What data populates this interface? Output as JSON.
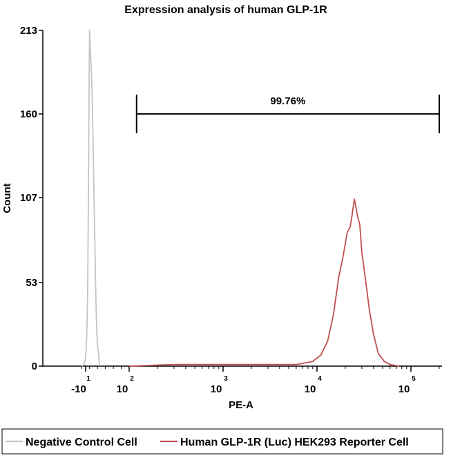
{
  "chart_data": {
    "type": "area",
    "title": "Expression analysis of human GLP-1R",
    "xlabel": "PE-A",
    "ylabel": "Count",
    "x_scale": "biexponential (log)",
    "xlim": [
      -20,
      200000
    ],
    "ylim": [
      0,
      213
    ],
    "y_ticks": [
      "0",
      "53",
      "107",
      "160",
      "213"
    ],
    "x_ticks": [
      {
        "base": "-10",
        "exp": "1",
        "value": -10
      },
      {
        "base": "10",
        "exp": "2",
        "value": 100
      },
      {
        "base": "10",
        "exp": "3",
        "value": 1000
      },
      {
        "base": "10",
        "exp": "4",
        "value": 10000
      },
      {
        "base": "10",
        "exp": "5",
        "value": 100000
      }
    ],
    "gate": {
      "label": "99.76%",
      "x_start": 120,
      "x_end": 200000,
      "y": 160
    },
    "series": [
      {
        "name": "Negative Control Cell",
        "color": "#c4c4c4",
        "points": [
          [
            -20,
            0
          ],
          [
            -14,
            1
          ],
          [
            -11,
            4
          ],
          [
            -9,
            9
          ],
          [
            -7,
            20
          ],
          [
            -5,
            45
          ],
          [
            -3,
            105
          ],
          [
            -1,
            190
          ],
          [
            0,
            213
          ],
          [
            1,
            205
          ],
          [
            2,
            200
          ],
          [
            3,
            196
          ],
          [
            5,
            185
          ],
          [
            7,
            165
          ],
          [
            9,
            140
          ],
          [
            11,
            110
          ],
          [
            13,
            82
          ],
          [
            15,
            55
          ],
          [
            17,
            30
          ],
          [
            19,
            18
          ],
          [
            20,
            13
          ],
          [
            21,
            11
          ],
          [
            22,
            10
          ],
          [
            23,
            6
          ],
          [
            24,
            3
          ],
          [
            25,
            1
          ],
          [
            26,
            0
          ]
        ]
      },
      {
        "name": "Human GLP-1R (Luc) HEK293 Reporter Cell",
        "color": "#c0504d",
        "points": [
          [
            100,
            0
          ],
          [
            300,
            1
          ],
          [
            1000,
            1
          ],
          [
            3000,
            1
          ],
          [
            6000,
            1
          ],
          [
            9000,
            3
          ],
          [
            11000,
            7
          ],
          [
            13000,
            16
          ],
          [
            15000,
            33
          ],
          [
            17000,
            56
          ],
          [
            19000,
            70
          ],
          [
            21000,
            85
          ],
          [
            22500,
            88
          ],
          [
            23500,
            95
          ],
          [
            25000,
            106
          ],
          [
            27000,
            95
          ],
          [
            28500,
            90
          ],
          [
            30000,
            72
          ],
          [
            33000,
            54
          ],
          [
            36000,
            36
          ],
          [
            40000,
            20
          ],
          [
            45000,
            8
          ],
          [
            52000,
            3
          ],
          [
            60000,
            1
          ],
          [
            75000,
            0
          ]
        ]
      }
    ],
    "legend_position": "bottom"
  }
}
